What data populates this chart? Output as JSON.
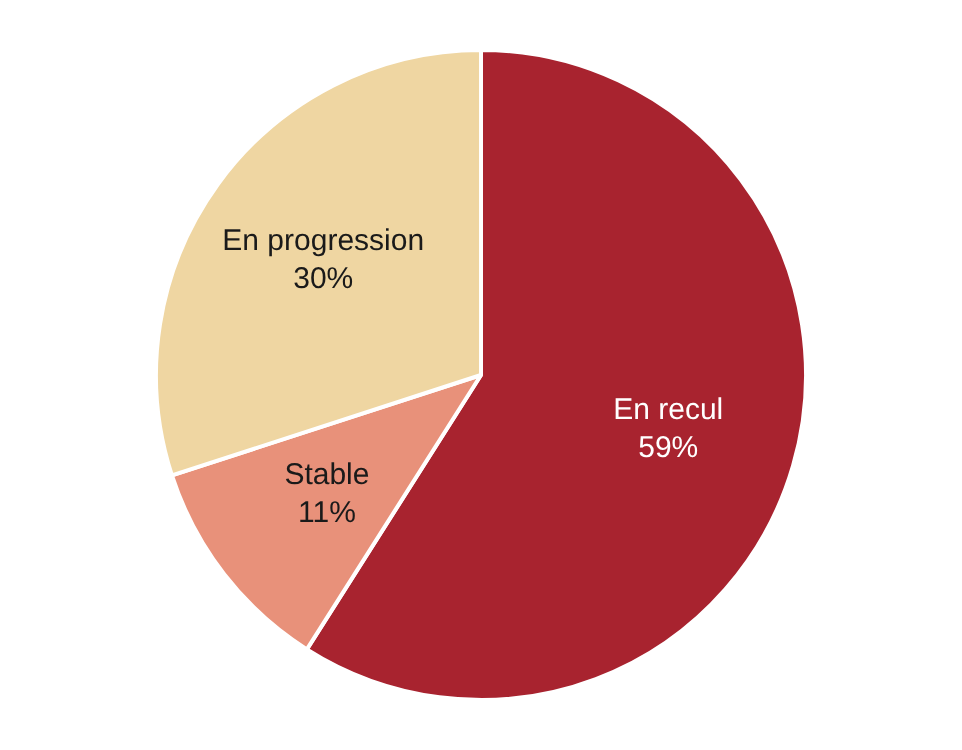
{
  "chart_data": {
    "type": "pie",
    "categories": [
      "En recul",
      "Stable",
      "En progression"
    ],
    "values": [
      59,
      11,
      30
    ],
    "colors": [
      "#a8232f",
      "#e8917a",
      "#efd6a2"
    ],
    "value_labels": [
      "59%",
      "11%",
      "30%"
    ],
    "legend": false
  }
}
